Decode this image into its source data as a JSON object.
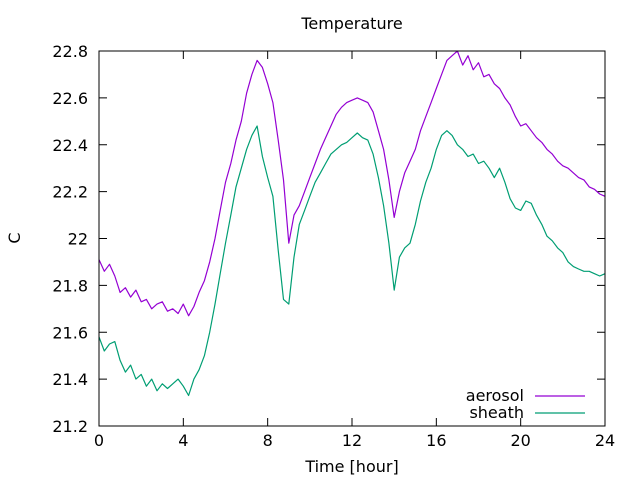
{
  "chart_data": {
    "type": "line",
    "title": "Temperature",
    "xlabel": "Time [hour]",
    "ylabel": "C",
    "xlim": [
      0,
      24
    ],
    "ylim": [
      21.2,
      22.8
    ],
    "xticks": [
      0,
      4,
      8,
      12,
      16,
      20,
      24
    ],
    "yticks": [
      21.2,
      21.4,
      21.6,
      21.8,
      22,
      22.2,
      22.4,
      22.6,
      22.8
    ],
    "xtick_labels": [
      "0",
      "4",
      "8",
      "12",
      "16",
      "20",
      "24"
    ],
    "ytick_labels": [
      "21.2",
      "21.4",
      "21.6",
      "21.8",
      "22",
      "22.2",
      "22.4",
      "22.6",
      "22.8"
    ],
    "grid": false,
    "legend_position": "bottom-right",
    "series": [
      {
        "name": "aerosol",
        "color": "#9400d3",
        "x": [
          0,
          0.25,
          0.5,
          0.75,
          1.0,
          1.25,
          1.5,
          1.75,
          2.0,
          2.25,
          2.5,
          2.75,
          3.0,
          3.25,
          3.5,
          3.75,
          4.0,
          4.25,
          4.5,
          4.75,
          5.0,
          5.25,
          5.5,
          5.75,
          6.0,
          6.25,
          6.5,
          6.75,
          7.0,
          7.25,
          7.5,
          7.75,
          8.0,
          8.25,
          8.5,
          8.75,
          9.0,
          9.25,
          9.5,
          9.75,
          10.0,
          10.25,
          10.5,
          10.75,
          11.0,
          11.25,
          11.5,
          11.75,
          12.0,
          12.25,
          12.5,
          12.75,
          13.0,
          13.25,
          13.5,
          13.75,
          14.0,
          14.25,
          14.5,
          14.75,
          15.0,
          15.25,
          15.5,
          15.75,
          16.0,
          16.25,
          16.5,
          16.75,
          17.0,
          17.25,
          17.5,
          17.75,
          18.0,
          18.25,
          18.5,
          18.75,
          19.0,
          19.25,
          19.5,
          19.75,
          20.0,
          20.25,
          20.5,
          20.75,
          21.0,
          21.25,
          21.5,
          21.75,
          22.0,
          22.25,
          22.5,
          22.75,
          23.0,
          23.25,
          23.5,
          23.75,
          24.0
        ],
        "values": [
          21.91,
          21.86,
          21.89,
          21.84,
          21.77,
          21.79,
          21.75,
          21.78,
          21.73,
          21.74,
          21.7,
          21.72,
          21.73,
          21.69,
          21.7,
          21.68,
          21.72,
          21.67,
          21.71,
          21.77,
          21.82,
          21.9,
          22.0,
          22.12,
          22.24,
          22.32,
          22.42,
          22.5,
          22.62,
          22.7,
          22.76,
          22.73,
          22.66,
          22.58,
          22.42,
          22.25,
          21.98,
          22.1,
          22.14,
          22.2,
          22.26,
          22.32,
          22.38,
          22.43,
          22.48,
          22.53,
          22.56,
          22.58,
          22.59,
          22.6,
          22.59,
          22.58,
          22.54,
          22.46,
          22.38,
          22.25,
          22.09,
          22.2,
          22.28,
          22.33,
          22.38,
          22.46,
          22.52,
          22.58,
          22.64,
          22.7,
          22.76,
          22.78,
          22.8,
          22.74,
          22.78,
          22.72,
          22.75,
          22.69,
          22.7,
          22.66,
          22.64,
          22.6,
          22.57,
          22.52,
          22.48,
          22.49,
          22.46,
          22.43,
          22.41,
          22.38,
          22.36,
          22.33,
          22.31,
          22.3,
          22.28,
          22.26,
          22.25,
          22.22,
          22.21,
          22.19,
          22.18
        ]
      },
      {
        "name": "sheath",
        "color": "#009e73",
        "x": [
          0,
          0.25,
          0.5,
          0.75,
          1.0,
          1.25,
          1.5,
          1.75,
          2.0,
          2.25,
          2.5,
          2.75,
          3.0,
          3.25,
          3.5,
          3.75,
          4.0,
          4.25,
          4.5,
          4.75,
          5.0,
          5.25,
          5.5,
          5.75,
          6.0,
          6.25,
          6.5,
          6.75,
          7.0,
          7.25,
          7.5,
          7.75,
          8.0,
          8.25,
          8.5,
          8.75,
          9.0,
          9.25,
          9.5,
          9.75,
          10.0,
          10.25,
          10.5,
          10.75,
          11.0,
          11.25,
          11.5,
          11.75,
          12.0,
          12.25,
          12.5,
          12.75,
          13.0,
          13.25,
          13.5,
          13.75,
          14.0,
          14.25,
          14.5,
          14.75,
          15.0,
          15.25,
          15.5,
          15.75,
          16.0,
          16.25,
          16.5,
          16.75,
          17.0,
          17.25,
          17.5,
          17.75,
          18.0,
          18.25,
          18.5,
          18.75,
          19.0,
          19.25,
          19.5,
          19.75,
          20.0,
          20.25,
          20.5,
          20.75,
          21.0,
          21.25,
          21.5,
          21.75,
          22.0,
          22.25,
          22.5,
          22.75,
          23.0,
          23.25,
          23.5,
          23.75,
          24.0
        ],
        "values": [
          21.58,
          21.52,
          21.55,
          21.56,
          21.48,
          21.43,
          21.46,
          21.4,
          21.42,
          21.37,
          21.4,
          21.35,
          21.38,
          21.36,
          21.38,
          21.4,
          21.37,
          21.33,
          21.4,
          21.44,
          21.5,
          21.6,
          21.72,
          21.85,
          21.98,
          22.1,
          22.22,
          22.3,
          22.38,
          22.44,
          22.48,
          22.35,
          22.26,
          22.18,
          21.95,
          21.74,
          21.72,
          21.92,
          22.06,
          22.12,
          22.18,
          22.24,
          22.28,
          22.32,
          22.36,
          22.38,
          22.4,
          22.41,
          22.43,
          22.45,
          22.43,
          22.42,
          22.36,
          22.26,
          22.14,
          21.98,
          21.78,
          21.92,
          21.96,
          21.98,
          22.06,
          22.16,
          22.24,
          22.3,
          22.38,
          22.44,
          22.46,
          22.44,
          22.4,
          22.38,
          22.35,
          22.36,
          22.32,
          22.33,
          22.3,
          22.26,
          22.3,
          22.24,
          22.17,
          22.13,
          22.12,
          22.16,
          22.15,
          22.1,
          22.06,
          22.01,
          21.99,
          21.96,
          21.94,
          21.9,
          21.88,
          21.87,
          21.86,
          21.86,
          21.85,
          21.84,
          21.85
        ]
      }
    ]
  }
}
